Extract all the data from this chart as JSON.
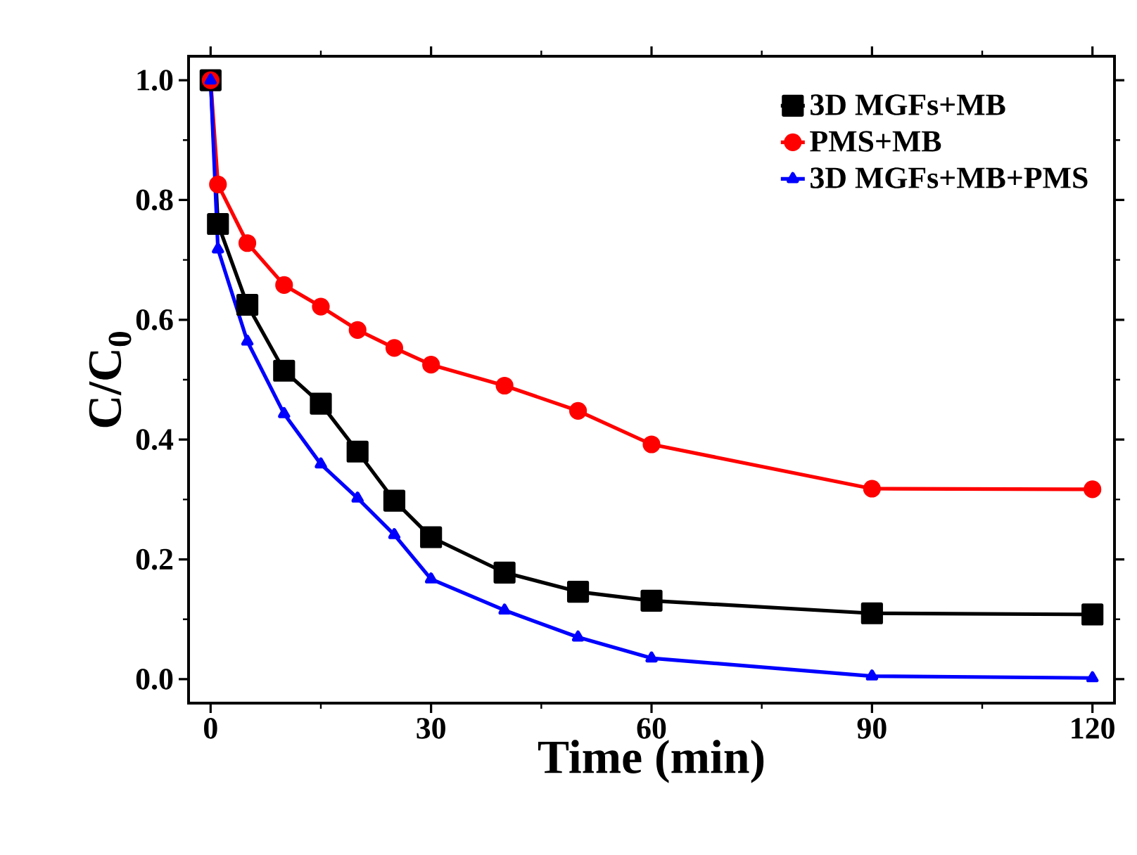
{
  "chart_data": {
    "type": "line",
    "xlabel": "Time (min)",
    "ylabel": "C/C$_{0}$",
    "x": [
      0,
      1,
      5,
      10,
      15,
      20,
      25,
      30,
      40,
      50,
      60,
      90,
      120
    ],
    "series": [
      {
        "name": "3D MGFs+MB",
        "color": "#000000",
        "marker": "square",
        "values": [
          1.0,
          0.76,
          0.625,
          0.515,
          0.46,
          0.38,
          0.298,
          0.237,
          0.178,
          0.146,
          0.131,
          0.11,
          0.108
        ]
      },
      {
        "name": "PMS+MB",
        "color": "#ff0000",
        "marker": "circle",
        "values": [
          1.0,
          0.826,
          0.728,
          0.658,
          0.622,
          0.583,
          0.553,
          0.525,
          0.49,
          0.448,
          0.392,
          0.318,
          0.317
        ]
      },
      {
        "name": "3D MGFs+MB+PMS",
        "color": "#0000ff",
        "marker": "triangle",
        "values": [
          1.0,
          0.718,
          0.564,
          0.443,
          0.359,
          0.302,
          0.241,
          0.167,
          0.115,
          0.07,
          0.035,
          0.005,
          0.002
        ]
      }
    ],
    "xlim": [
      -3,
      123
    ],
    "ylim": [
      -0.04,
      1.04
    ],
    "xticks": [
      0,
      30,
      60,
      90,
      120
    ],
    "yticks": [
      {
        "value": 0,
        "label": "0.0"
      },
      {
        "value": 0.2,
        "label": "0.2"
      },
      {
        "value": 0.4,
        "label": "0.4"
      },
      {
        "value": 0.6,
        "label": "0.6"
      },
      {
        "value": 0.8,
        "label": "0.8"
      },
      {
        "value": 1.0,
        "label": "1.0"
      }
    ],
    "grid": false,
    "legend": "top right",
    "line_style": "solid"
  }
}
